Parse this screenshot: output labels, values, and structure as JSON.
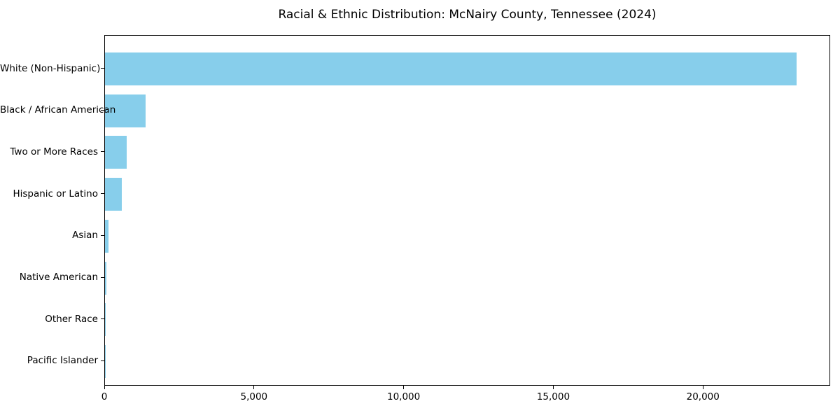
{
  "figure": {
    "title": "Racial & Ethnic Distribution: McNairy County, Tennessee (2024)"
  },
  "chart_data": {
    "type": "bar",
    "orientation": "horizontal",
    "title": "Racial & Ethnic Distribution: McNairy County, Tennessee (2024)",
    "categories": [
      "White (Non-Hispanic)",
      "Black / African American",
      "Two or More Races",
      "Hispanic or Latino",
      "Asian",
      "Native American",
      "Other Race",
      "Pacific Islander"
    ],
    "values": [
      23100,
      1360,
      730,
      560,
      115,
      45,
      25,
      10
    ],
    "xlabel": "",
    "ylabel": "",
    "xlim": [
      0,
      24250
    ],
    "xticks": [
      0,
      5000,
      10000,
      15000,
      20000
    ],
    "xtick_labels": [
      "0",
      "5,000",
      "10,000",
      "15,000",
      "20,000"
    ],
    "bar_color": "#87CEEB",
    "axis_color": "#000000",
    "text_color": "#000000",
    "background": "#FFFFFF",
    "grid": false,
    "legend": null
  }
}
